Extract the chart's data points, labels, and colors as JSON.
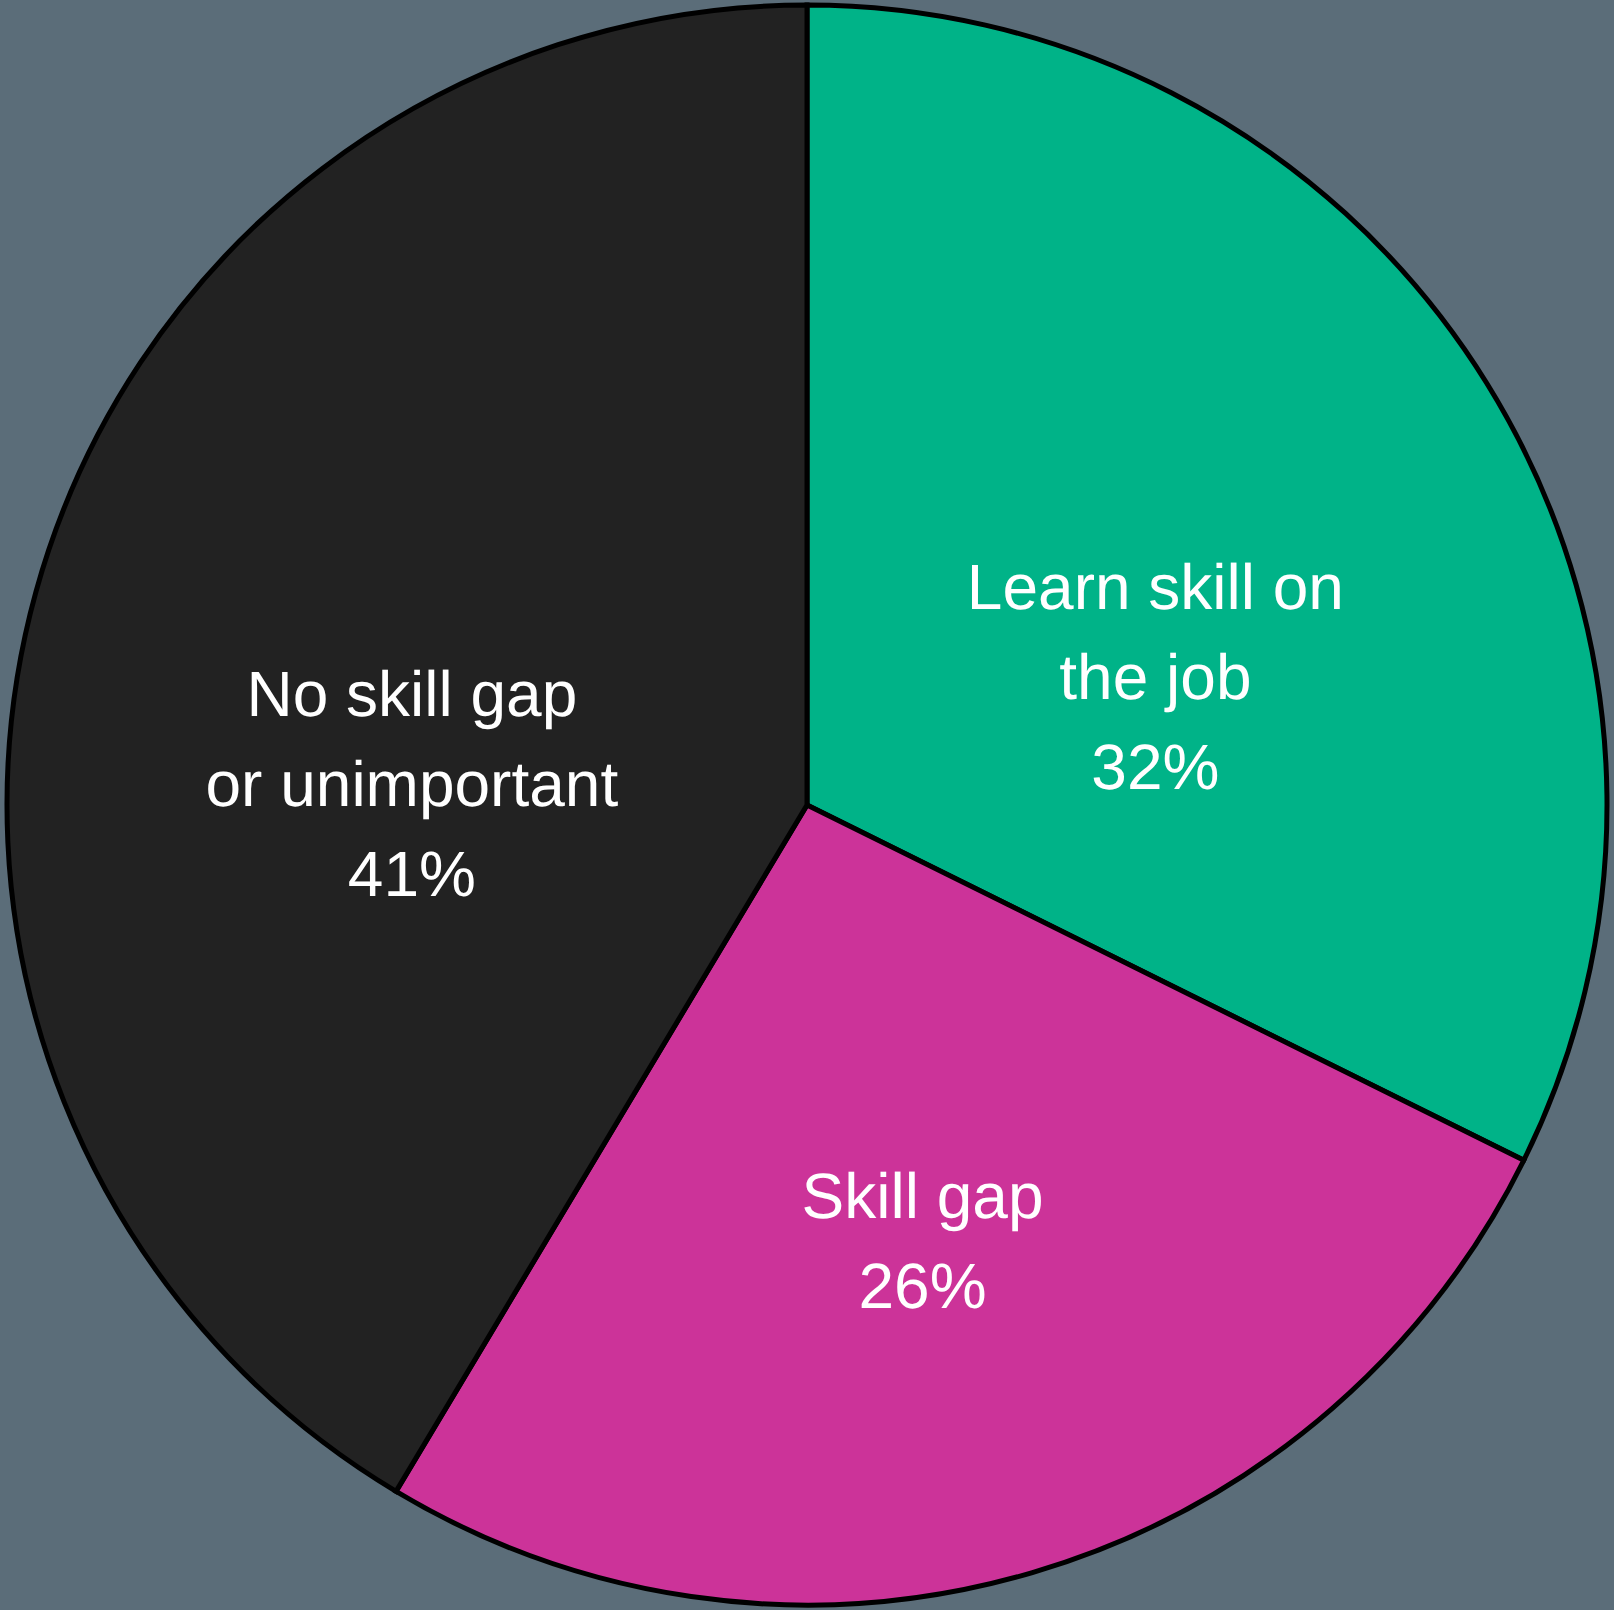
{
  "chart_data": {
    "type": "pie",
    "categories": [
      "Learn skill on the job",
      "Skill gap",
      "No skill gap or unimportant"
    ],
    "values": [
      32,
      26,
      41
    ],
    "colors": [
      "#00b388",
      "#cc3399",
      "#222222"
    ],
    "value_labels": [
      "32%",
      "26%",
      "41%"
    ]
  }
}
